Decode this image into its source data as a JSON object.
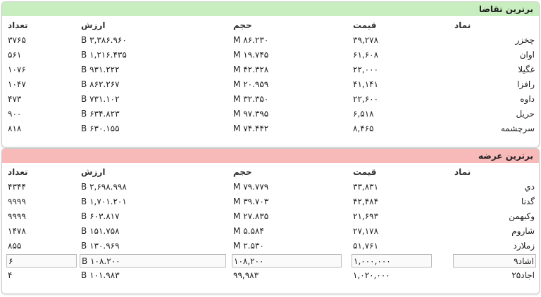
{
  "panels": [
    {
      "title": "برترین تقاضا",
      "columns": [
        "نماد",
        "قیمت",
        "حجم",
        "ارزش",
        "تعداد"
      ],
      "rows": [
        [
          "چخزر",
          "۳۹,۲۷۸",
          "۸۶.۲۳۰ M",
          "۳,۳۸۶.۹۶۰ B",
          "۳۷۶۵"
        ],
        [
          "اوان",
          "۶۱,۶۰۸",
          "۱۹.۷۴۵ M",
          "۱,۲۱۶.۴۳۵ B",
          "۵۶۱"
        ],
        [
          "غگیلا",
          "۲۲,۰۰۰",
          "۴۲.۳۲۸ M",
          "۹۳۱.۲۲۲ B",
          "۱۰۷۶"
        ],
        [
          "رافزا",
          "۴۱,۱۴۱",
          "۲۰.۹۵۹ M",
          "۸۶۲.۲۶۷ B",
          "۱۰۴۷"
        ],
        [
          "داوه",
          "۲۲,۶۰۰",
          "۳۲.۳۵۰ M",
          "۷۳۱.۱۰۲ B",
          "۴۷۳"
        ],
        [
          "حریل",
          "۶,۵۱۸",
          "۹۷.۳۹۵ M",
          "۶۳۴.۸۲۳ B",
          "۹۰۰"
        ],
        [
          "سرچشمه",
          "۸,۴۶۵",
          "۷۴.۴۴۲ M",
          "۶۳۰.۱۵۵ B",
          "۸۱۸"
        ]
      ]
    },
    {
      "title": "برترین عرضه",
      "columns": [
        "نماد",
        "قیمت",
        "حجم",
        "ارزش",
        "تعداد"
      ],
      "rows": [
        [
          "دي",
          "۳۳,۸۳۱",
          "۷۹.۷۷۹ M",
          "۲,۶۹۸.۹۹۸ B",
          "۴۳۴۴"
        ],
        [
          "گدنا",
          "۴۲,۴۸۴",
          "۳۹.۷۰۳ M",
          "۱,۷۰۱.۲۰۱ B",
          "۹۹۹۹"
        ],
        [
          "وکبهمن",
          "۲۱,۶۹۳",
          "۲۷.۸۳۵ M",
          "۶۰۳.۸۱۷ B",
          "۹۹۹۹"
        ],
        [
          "شاروم",
          "۲۷,۱۷۸",
          "۵.۵۸۴ M",
          "۱۵۱.۷۵۸ B",
          "۱۴۷۸"
        ],
        [
          "زملارد",
          "۵۱,۷۶۱",
          "۲.۵۳۰ M",
          "۱۳۰.۹۶۹ B",
          "۸۵۵"
        ],
        [
          "اشاد۹",
          "۱,۰۰۰,۰۰۰",
          "۱۰۸,۲۰۰",
          "۱۰۸.۲۰۰ B",
          "۶"
        ],
        [
          "اجاد۲۵",
          "۱,۰۲۰,۰۰۰",
          "۹۹,۹۸۳",
          "۱۰۱.۹۸۳ B",
          "۴"
        ]
      ]
    }
  ]
}
